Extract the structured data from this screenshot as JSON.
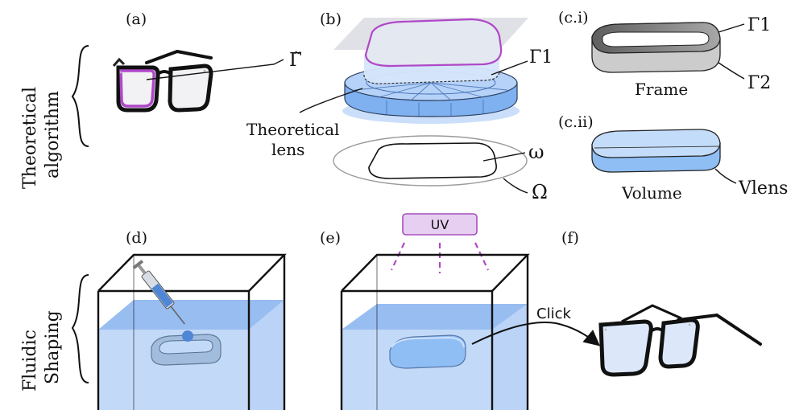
{
  "row_labels": {
    "top": [
      "Theoretical",
      "algorithm"
    ],
    "bottom": [
      "Fluidic",
      "Shaping"
    ]
  },
  "panels": {
    "a": "(a)",
    "b": "(b)",
    "ci": "(c.i)",
    "cii": "(c.ii)",
    "d": "(d)",
    "e": "(e)",
    "f": "(f)"
  },
  "labels": {
    "gamma_tilde": "Γ̃",
    "gamma1_b": "Γ1",
    "theoretical_lens": [
      "Theoretical",
      "lens"
    ],
    "omega_small": "ω",
    "omega_big": "Ω",
    "gamma1_c": "Γ1",
    "gamma2_c": "Γ2",
    "frame": "Frame",
    "volume": "Volume",
    "v_lens": "Vlens",
    "uv": "UV",
    "click": "Click"
  },
  "colors": {
    "lens_blue": "#8fbef5",
    "water_blue": "#b9d3f7",
    "frame_purple": "#b048c8",
    "uv_fill": "#e6cff0",
    "uv_stroke": "#a64fc0",
    "black": "#111111"
  }
}
